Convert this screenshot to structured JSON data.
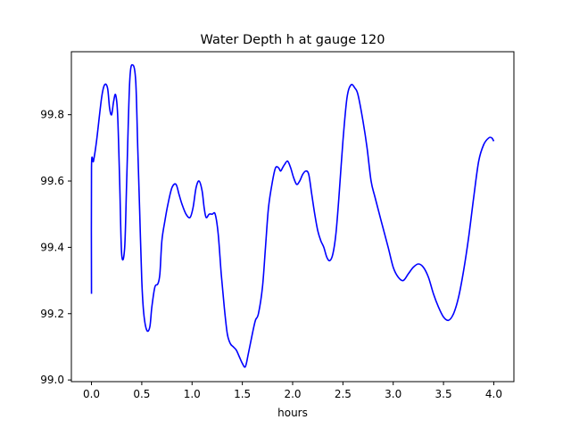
{
  "chart_data": {
    "type": "line",
    "title": "Water Depth h at gauge 120",
    "xlabel": "hours",
    "ylabel": "",
    "xlim": [
      -0.2,
      4.2
    ],
    "ylim": [
      98.995,
      99.99
    ],
    "xticks": [
      0.0,
      0.5,
      1.0,
      1.5,
      2.0,
      2.5,
      3.0,
      3.5,
      4.0
    ],
    "xtick_labels": [
      "0.0",
      "0.5",
      "1.0",
      "1.5",
      "2.0",
      "2.5",
      "3.0",
      "3.5",
      "4.0"
    ],
    "yticks": [
      99.0,
      99.2,
      99.4,
      99.6,
      99.8
    ],
    "ytick_labels": [
      "99.0",
      "99.2",
      "99.4",
      "99.6",
      "99.8"
    ],
    "grid": false,
    "legend": "none",
    "series_color": "#0000ff",
    "x": [
      0.0,
      0.0,
      0.02,
      0.05,
      0.1,
      0.13,
      0.16,
      0.18,
      0.2,
      0.22,
      0.24,
      0.26,
      0.28,
      0.3,
      0.33,
      0.35,
      0.38,
      0.41,
      0.44,
      0.46,
      0.48,
      0.5,
      0.52,
      0.55,
      0.58,
      0.6,
      0.63,
      0.66,
      0.68,
      0.7,
      0.73,
      0.76,
      0.8,
      0.84,
      0.87,
      0.9,
      0.94,
      0.98,
      1.01,
      1.04,
      1.07,
      1.1,
      1.12,
      1.14,
      1.17,
      1.2,
      1.23,
      1.26,
      1.29,
      1.32,
      1.35,
      1.38,
      1.41,
      1.44,
      1.47,
      1.5,
      1.53,
      1.56,
      1.6,
      1.63,
      1.66,
      1.7,
      1.73,
      1.76,
      1.8,
      1.83,
      1.86,
      1.88,
      1.9,
      1.92,
      1.95,
      1.98,
      2.01,
      2.04,
      2.07,
      2.1,
      2.13,
      2.16,
      2.19,
      2.22,
      2.25,
      2.28,
      2.31,
      2.34,
      2.37,
      2.4,
      2.43,
      2.46,
      2.5,
      2.54,
      2.58,
      2.62,
      2.65,
      2.7,
      2.74,
      2.78,
      2.82,
      2.88,
      2.95,
      3.0,
      3.05,
      3.1,
      3.15,
      3.2,
      3.25,
      3.3,
      3.35,
      3.4,
      3.45,
      3.5,
      3.55,
      3.6,
      3.65,
      3.7,
      3.75,
      3.8,
      3.85,
      3.9,
      3.95,
      3.98,
      4.0
    ],
    "y": [
      99.26,
      99.64,
      99.66,
      99.72,
      99.85,
      99.89,
      99.88,
      99.82,
      99.8,
      99.84,
      99.86,
      99.8,
      99.6,
      99.38,
      99.4,
      99.6,
      99.9,
      99.95,
      99.9,
      99.7,
      99.5,
      99.3,
      99.2,
      99.15,
      99.16,
      99.22,
      99.28,
      99.29,
      99.32,
      99.42,
      99.48,
      99.53,
      99.58,
      99.59,
      99.56,
      99.53,
      99.5,
      99.49,
      99.52,
      99.58,
      99.6,
      99.57,
      99.52,
      99.49,
      99.5,
      99.5,
      99.5,
      99.44,
      99.32,
      99.22,
      99.14,
      99.11,
      99.1,
      99.09,
      99.07,
      99.05,
      99.04,
      99.08,
      99.14,
      99.18,
      99.2,
      99.28,
      99.4,
      99.52,
      99.6,
      99.64,
      99.64,
      99.63,
      99.64,
      99.65,
      99.66,
      99.64,
      99.61,
      99.59,
      99.6,
      99.62,
      99.63,
      99.62,
      99.56,
      99.5,
      99.45,
      99.42,
      99.4,
      99.37,
      99.36,
      99.38,
      99.44,
      99.55,
      99.72,
      99.85,
      99.89,
      99.88,
      99.86,
      99.78,
      99.7,
      99.6,
      99.55,
      99.48,
      99.4,
      99.34,
      99.31,
      99.3,
      99.32,
      99.34,
      99.35,
      99.34,
      99.31,
      99.26,
      99.22,
      99.19,
      99.18,
      99.2,
      99.25,
      99.33,
      99.43,
      99.55,
      99.66,
      99.71,
      99.73,
      99.73,
      99.72
    ]
  }
}
